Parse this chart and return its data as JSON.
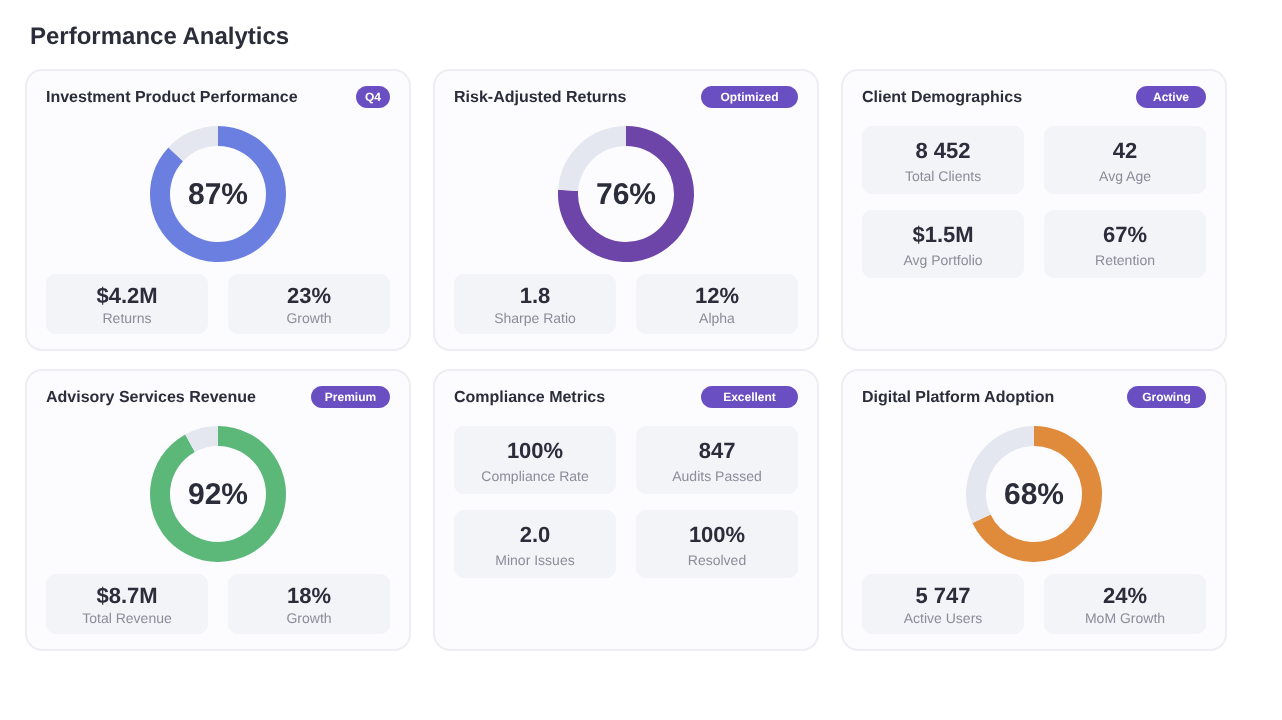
{
  "chart_data": [
    {
      "type": "other",
      "title": "Performance Analytics"
    },
    {
      "type": "donut",
      "title": "Investment Product Performance",
      "subtitle": "Q4",
      "categories": [
        null,
        null
      ],
      "values": [
        87,
        13
      ],
      "colors": [
        "#6b7fe0",
        "#e4e7ef"
      ],
      "value_labels": [
        "87%",
        null
      ],
      "annotations": [
        "$4.2M",
        "Returns",
        "23%",
        "Growth"
      ]
    },
    {
      "type": "donut",
      "title": "Risk-Adjusted Returns",
      "subtitle": "Optimized",
      "categories": [
        null,
        null
      ],
      "values": [
        76,
        24
      ],
      "colors": [
        "#6d45a8",
        "#e4e7ef"
      ],
      "value_labels": [
        "76%",
        null
      ],
      "annotations": [
        "1.8",
        "Sharpe Ratio",
        "12%",
        "Alpha"
      ]
    },
    {
      "type": "other",
      "title": "Client Demographics",
      "subtitle": "Active",
      "annotations": [
        "8 452",
        "Total Clients",
        "42",
        "Avg Age",
        "$1.5M",
        "Avg Portfolio",
        "67%",
        "Retention"
      ]
    },
    {
      "type": "donut",
      "title": "Advisory Services Revenue",
      "subtitle": "Premium",
      "categories": [
        null,
        null
      ],
      "values": [
        92,
        8
      ],
      "colors": [
        "#5cb878",
        "#e4e7ef"
      ],
      "value_labels": [
        "92%",
        null
      ],
      "annotations": [
        "$8.7M",
        "Total Revenue",
        "18%",
        "Growth"
      ]
    },
    {
      "type": "other",
      "title": "Compliance Metrics",
      "subtitle": "Excellent",
      "annotations": [
        "100%",
        "Compliance Rate",
        "847",
        "Audits Passed",
        "2.0",
        "Minor Issues",
        "100%",
        "Resolved"
      ]
    },
    {
      "type": "donut",
      "title": "Digital Platform Adoption",
      "subtitle": "Growing",
      "categories": [
        null,
        null
      ],
      "values": [
        68,
        32
      ],
      "colors": [
        "#e08a3c",
        "#e4e7ef"
      ],
      "value_labels": [
        "68%",
        null
      ],
      "annotations": [
        "5 747",
        "Active Users",
        "24%",
        "MoM Growth"
      ]
    }
  ]
}
